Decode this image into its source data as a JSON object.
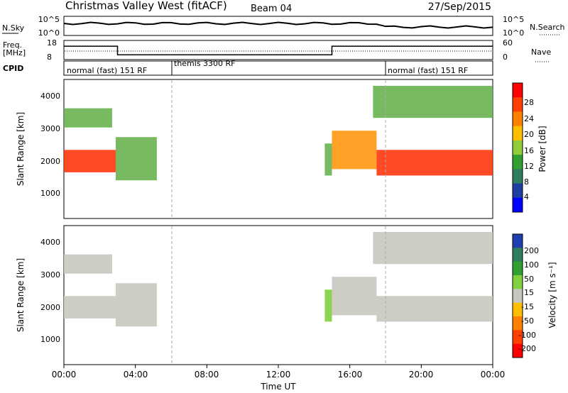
{
  "header": {
    "title": "Christmas Valley West (fitACF)",
    "beam": "Beam 04",
    "date": "27/Sep/2015"
  },
  "sky_panel": {
    "left_label": "N.Sky",
    "right_label": "N.Search",
    "tick_top": "10^5",
    "tick_bottom": "10^0",
    "right_tick_top": "10^5",
    "right_tick_bottom": "10^0"
  },
  "freq_panel": {
    "left_label_1": "Freq.",
    "left_label_2": "[MHz]",
    "right_label": "Nave",
    "left_tick_top": "18",
    "left_tick_bottom": "8",
    "right_tick_top": "60",
    "right_tick_bottom": "0"
  },
  "cpid": {
    "label": "CPID",
    "segments": [
      "normal (fast) 151 RF",
      "themis 3300 RF",
      "normal (fast) 151 RF"
    ]
  },
  "power_panel": {
    "ylabel": "Slant Range [km]",
    "yticks": [
      "4000",
      "3000",
      "2000",
      "1000"
    ],
    "colorbar_label": "Power [dB]",
    "colorbar_ticks": [
      "28",
      "24",
      "20",
      "16",
      "12",
      "8",
      "4"
    ],
    "colors": [
      "#ff0000",
      "#ff4000",
      "#ff8000",
      "#ffbf00",
      "#8fce3a",
      "#30a030",
      "#2f7f5f",
      "#1f3fa0",
      "#0000ff"
    ]
  },
  "velocity_panel": {
    "ylabel": "Slant Range [km]",
    "yticks": [
      "4000",
      "3000",
      "2000",
      "1000"
    ],
    "colorbar_label": "Velocity [m s⁻¹]",
    "colorbar_ticks": [
      "200",
      "100",
      "50",
      "15",
      "-15",
      "-50",
      "-100",
      "-200"
    ],
    "colors": [
      "#1f3fb0",
      "#2f7f5f",
      "#30a030",
      "#80d040",
      "#c8c8c0",
      "#ffbf00",
      "#ff8000",
      "#ff4000",
      "#ff0000"
    ]
  },
  "xaxis": {
    "label": "Time UT",
    "ticks": [
      "00:00",
      "04:00",
      "08:00",
      "12:00",
      "16:00",
      "20:00",
      "00:00"
    ]
  },
  "chart_data": {
    "type": "heatmap",
    "title": "Christmas Valley West (fitACF)",
    "xlabel": "Time UT",
    "ylabel": "Slant Range [km]",
    "xlim_hours": [
      0,
      24
    ],
    "ylim_km": [
      180,
      4500
    ],
    "frequency_mhz_steps": [
      {
        "t_start": 0,
        "t_end": 3,
        "freq": 15
      },
      {
        "t_start": 3,
        "t_end": 15,
        "freq": 10.5
      },
      {
        "t_start": 15,
        "t_end": 24,
        "freq": 15
      }
    ],
    "cpid_segments": [
      {
        "t_start": 0,
        "t_end": 6,
        "name": "normal (fast) 151 RF"
      },
      {
        "t_start": 6,
        "t_end": 18,
        "name": "themis 3300 RF"
      },
      {
        "t_start": 18,
        "t_end": 24,
        "name": "normal (fast) 151 RF"
      }
    ],
    "echo_regions": [
      {
        "t_start": 0,
        "t_end": 2.9,
        "range_low": 1600,
        "range_high": 2300,
        "power_db": 24,
        "velocity": 0
      },
      {
        "t_start": 0,
        "t_end": 2.7,
        "range_low": 3000,
        "range_high": 3600,
        "power_db": 14,
        "velocity": 0
      },
      {
        "t_start": 2.9,
        "t_end": 5.2,
        "range_low": 1350,
        "range_high": 2700,
        "power_db": 14,
        "velocity": 0
      },
      {
        "t_start": 14.6,
        "t_end": 15.0,
        "range_low": 1500,
        "range_high": 2500,
        "power_db": 14,
        "velocity": 30
      },
      {
        "t_start": 15.0,
        "t_end": 17.5,
        "range_low": 1700,
        "range_high": 2900,
        "power_db": 20,
        "velocity": 0
      },
      {
        "t_start": 17.5,
        "t_end": 24,
        "range_low": 1500,
        "range_high": 2300,
        "power_db": 24,
        "velocity": 0
      },
      {
        "t_start": 17.3,
        "t_end": 24,
        "range_low": 3300,
        "range_high": 4300,
        "power_db": 14,
        "velocity": 0
      }
    ]
  }
}
